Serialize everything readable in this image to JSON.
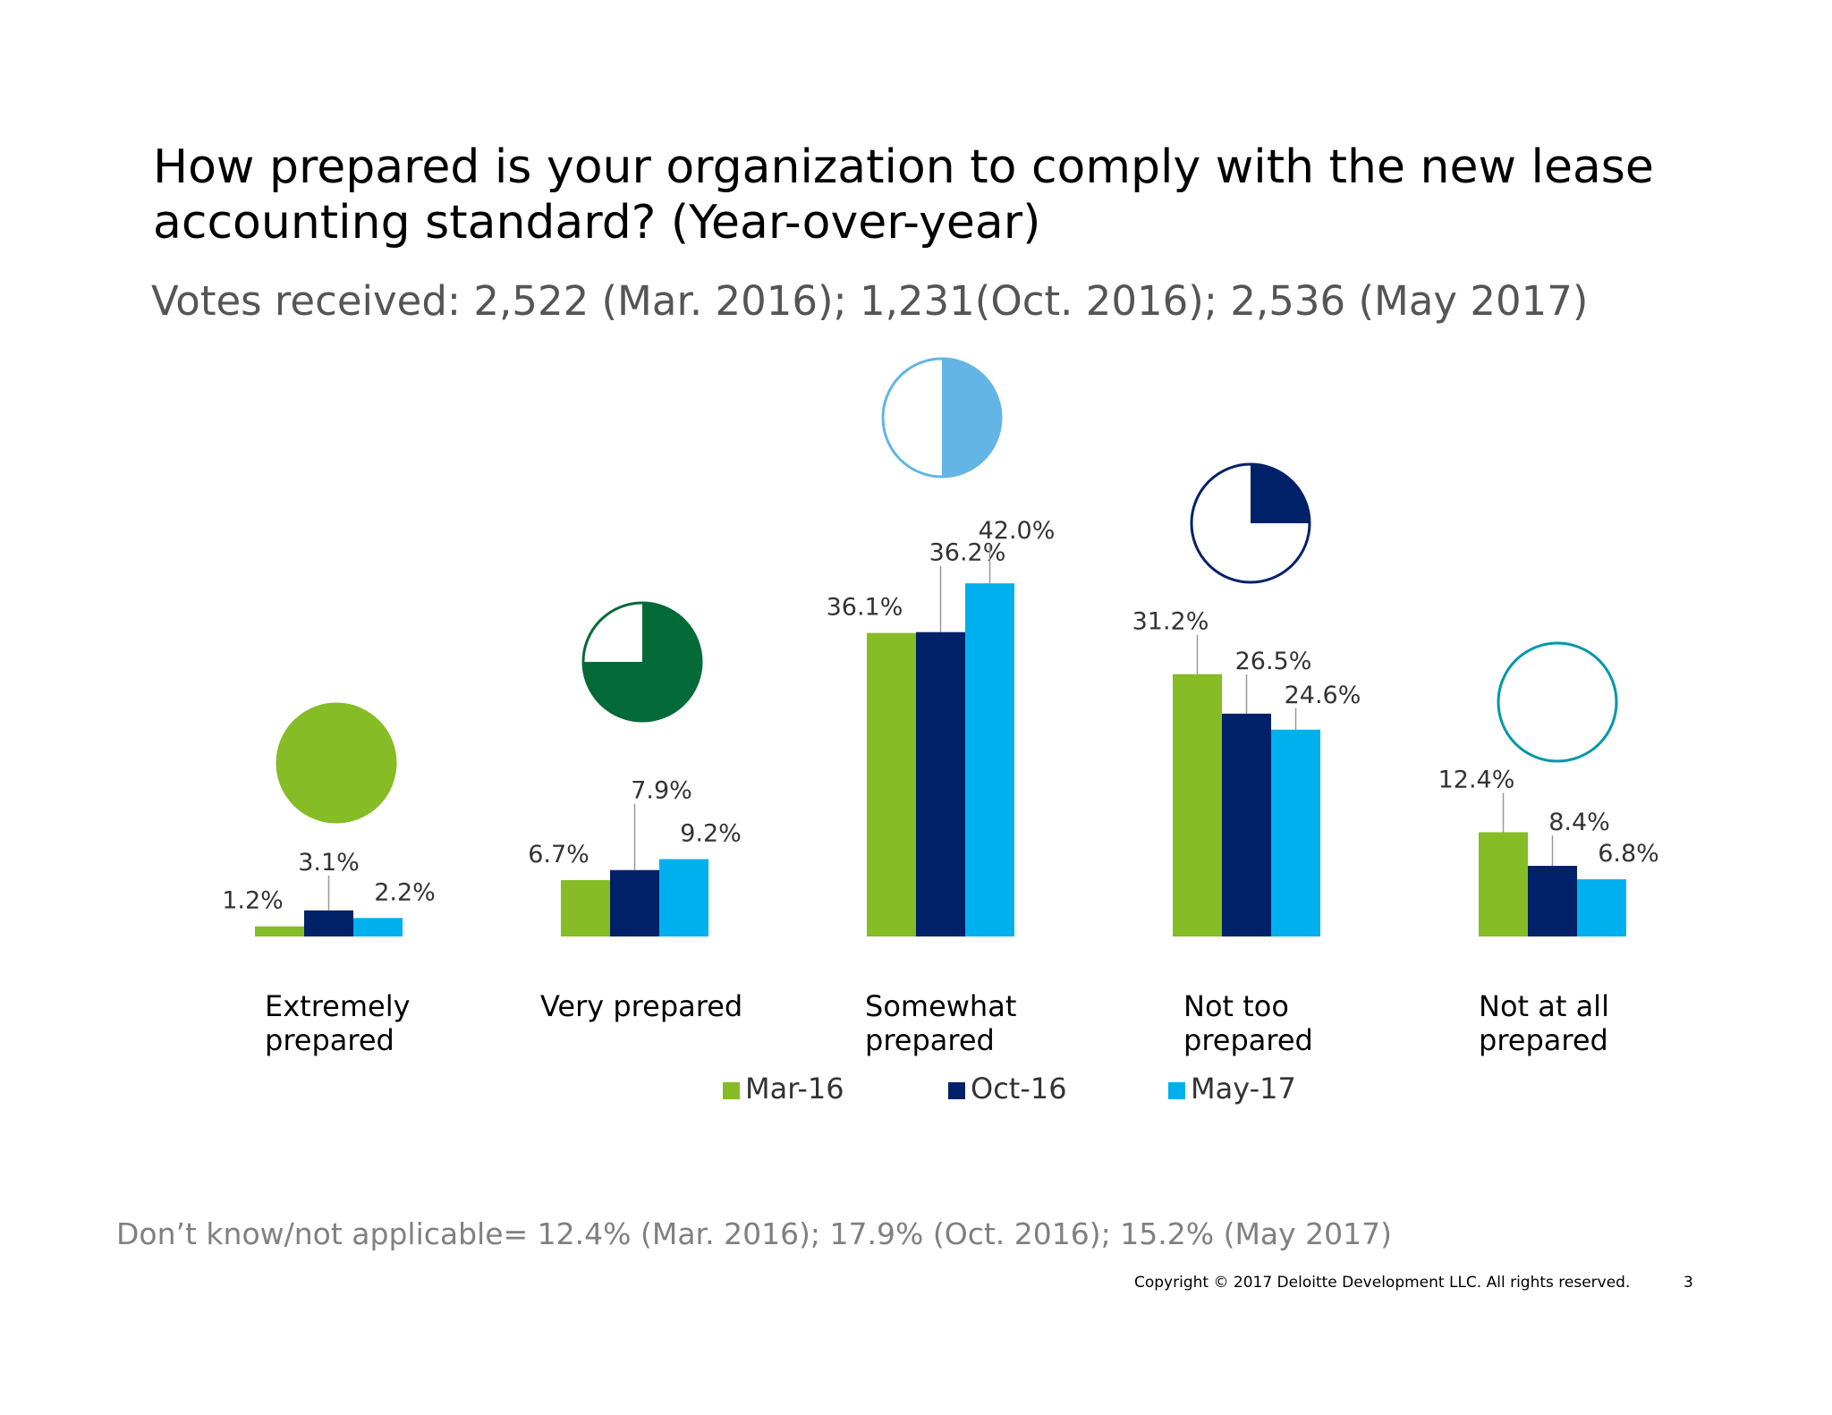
{
  "slide": {
    "title_line1": "How prepared is your organization to comply with the new lease",
    "title_line2": "accounting standard? (Year-over-year)",
    "subtitle": "Votes received: 2,522 (Mar. 2016); 1,231(Oct. 2016); 2,536 (May 2017)",
    "footnote": "Don’t know/not applicable= 12.4% (Mar. 2016); 17.9% (Oct. 2016); 15.2% (May 2017)",
    "copyright": "Copyright © 2017 Deloitte Development LLC. All rights reserved.",
    "page_number": "3"
  },
  "chart_data": {
    "type": "bar",
    "categories": [
      [
        "Extremely",
        "prepared"
      ],
      [
        "Very prepared"
      ],
      [
        "Somewhat",
        "prepared"
      ],
      [
        "Not too",
        "prepared"
      ],
      [
        "Not at all",
        "prepared"
      ]
    ],
    "series": [
      {
        "name": "Mar-16",
        "color": "#86BC25",
        "values": [
          1.2,
          6.7,
          36.1,
          31.2,
          12.4
        ]
      },
      {
        "name": "Oct-16",
        "color": "#012169",
        "values": [
          3.1,
          7.9,
          36.2,
          26.5,
          8.4
        ]
      },
      {
        "name": "May-17",
        "color": "#00B0EE",
        "values": [
          2.2,
          9.2,
          42.0,
          24.6,
          6.8
        ]
      }
    ],
    "value_labels": [
      [
        "1.2%",
        "3.1%",
        "2.2%"
      ],
      [
        "6.7%",
        "7.9%",
        "9.2%"
      ],
      [
        "36.1%",
        "36.2%",
        "42.0%"
      ],
      [
        "31.2%",
        "26.5%",
        "24.6%"
      ],
      [
        "12.4%",
        "8.4%",
        "6.8%"
      ]
    ],
    "legend_position": "bottom",
    "grid": false,
    "harvey_balls": [
      {
        "fill": 1.0,
        "color": "#86BC25"
      },
      {
        "fill": 0.75,
        "color": "#046A38"
      },
      {
        "fill": 0.5,
        "color": "#62B5E5"
      },
      {
        "fill": 0.25,
        "color": "#012169"
      },
      {
        "fill": 0.0,
        "color": "#0097A9"
      }
    ]
  }
}
